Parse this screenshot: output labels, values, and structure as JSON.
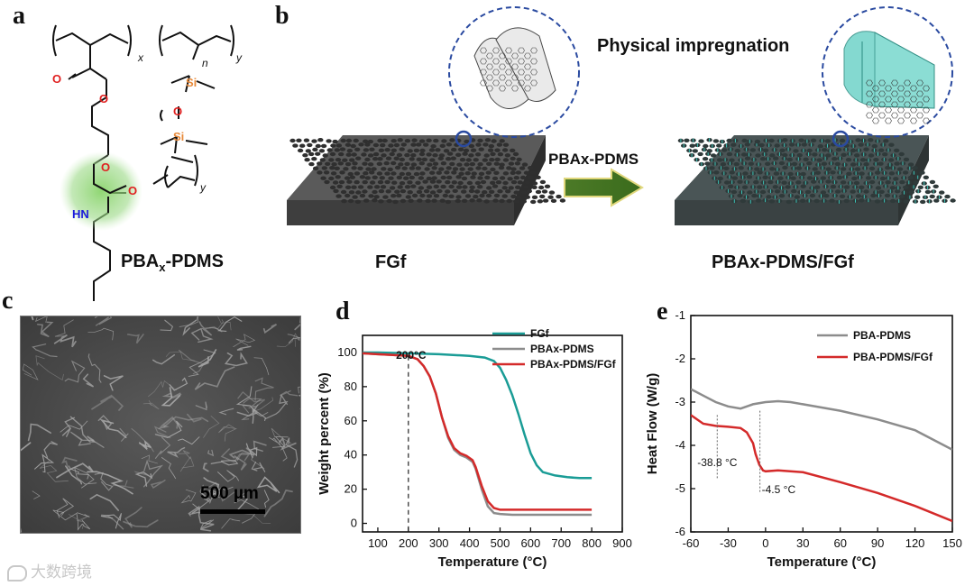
{
  "panels": {
    "a": {
      "letter": "a",
      "name": "PBAx-PDMS",
      "name_base": "PBA",
      "name_sub": "x",
      "name_tail": "-PDMS"
    },
    "b": {
      "letter": "b",
      "title": "Physical impregnation",
      "arrow_label": "PBAx-PDMS",
      "left_label": "FGf",
      "right_label": "PBAx-PDMS/FGf"
    },
    "c": {
      "letter": "c",
      "scale_bar": "500 µm"
    },
    "d": {
      "letter": "d"
    },
    "e": {
      "letter": "e"
    }
  },
  "chem": {
    "x": "x",
    "y": "y",
    "n": "n",
    "y2": "y",
    "O1": "O",
    "O2": "O",
    "O3": "O",
    "O4": "O",
    "HN": "HN",
    "Si1": "Si",
    "O5": "O",
    "Si2": "Si"
  },
  "watermark": "大数跨境",
  "chart_data": [
    {
      "panel": "d",
      "type": "line",
      "xlabel": "Temperature (°C)",
      "ylabel": "Weight percent (%)",
      "xlim": [
        50,
        900
      ],
      "ylim": [
        -5,
        110
      ],
      "xticks": [
        100,
        200,
        300,
        400,
        500,
        600,
        700,
        800,
        900
      ],
      "yticks": [
        0,
        20,
        40,
        60,
        80,
        100
      ],
      "legend_position": "top-right",
      "annotation": {
        "text": "200°C",
        "x": 200
      },
      "series": [
        {
          "name": "FGf",
          "color": "#1a9c96",
          "x": [
            50,
            100,
            200,
            300,
            400,
            450,
            480,
            500,
            520,
            540,
            560,
            580,
            600,
            620,
            640,
            680,
            720,
            760,
            800
          ],
          "y": [
            100,
            100,
            99.5,
            99,
            98,
            97,
            95,
            91,
            84,
            75,
            64,
            52,
            41,
            34,
            30,
            28,
            27,
            26.5,
            26.5
          ]
        },
        {
          "name": "PBAx-PDMS",
          "color": "#8c8c8c",
          "x": [
            50,
            100,
            150,
            200,
            230,
            250,
            270,
            290,
            310,
            330,
            350,
            370,
            390,
            410,
            420,
            440,
            460,
            480,
            500,
            540,
            600,
            700,
            800
          ],
          "y": [
            99.5,
            99,
            98.5,
            98,
            96,
            92,
            86,
            76,
            62,
            50,
            43,
            40,
            38.5,
            36,
            32,
            20,
            10,
            6,
            5.5,
            5,
            5,
            5,
            5
          ]
        },
        {
          "name": "PBAx-PDMS/FGf",
          "color": "#d42a2a",
          "x": [
            50,
            100,
            150,
            200,
            230,
            250,
            270,
            290,
            310,
            330,
            350,
            370,
            390,
            410,
            420,
            440,
            460,
            480,
            500,
            540,
            600,
            700,
            800
          ],
          "y": [
            99.5,
            99,
            98.5,
            98,
            96,
            92,
            86,
            76,
            62,
            51,
            44,
            41,
            39.5,
            37,
            33,
            22,
            13,
            9,
            8,
            8,
            8,
            8,
            8
          ]
        }
      ]
    },
    {
      "panel": "e",
      "type": "line",
      "xlabel": "Temperature (°C)",
      "ylabel": "Heat Flow (W/g)",
      "xlim": [
        -60,
        150
      ],
      "ylim": [
        -6,
        -1
      ],
      "xticks": [
        -60,
        -30,
        0,
        30,
        60,
        90,
        120,
        150
      ],
      "yticks": [
        -1,
        -2,
        -3,
        -4,
        -5,
        -6
      ],
      "legend_position": "top-right",
      "annotations": [
        {
          "text": "-38.8 °C",
          "x": -38.8
        },
        {
          "text": "-4.5 °C",
          "x": -4.5
        }
      ],
      "series": [
        {
          "name": "PBA-PDMS",
          "color": "#8c8c8c",
          "x": [
            -60,
            -50,
            -40,
            -30,
            -20,
            -15,
            -10,
            0,
            10,
            20,
            30,
            60,
            90,
            120,
            150
          ],
          "y": [
            -2.7,
            -2.85,
            -3.0,
            -3.1,
            -3.15,
            -3.1,
            -3.05,
            -3.0,
            -2.98,
            -3.0,
            -3.05,
            -3.2,
            -3.4,
            -3.65,
            -4.1
          ]
        },
        {
          "name": "PBA-PDMS/FGf",
          "color": "#d42a2a",
          "x": [
            -60,
            -50,
            -40,
            -30,
            -20,
            -15,
            -10,
            -8,
            -5,
            -2,
            0,
            10,
            30,
            60,
            90,
            120,
            150
          ],
          "y": [
            -3.3,
            -3.5,
            -3.55,
            -3.57,
            -3.6,
            -3.7,
            -3.95,
            -4.2,
            -4.45,
            -4.58,
            -4.6,
            -4.58,
            -4.62,
            -4.85,
            -5.1,
            -5.4,
            -5.75
          ]
        }
      ]
    }
  ]
}
